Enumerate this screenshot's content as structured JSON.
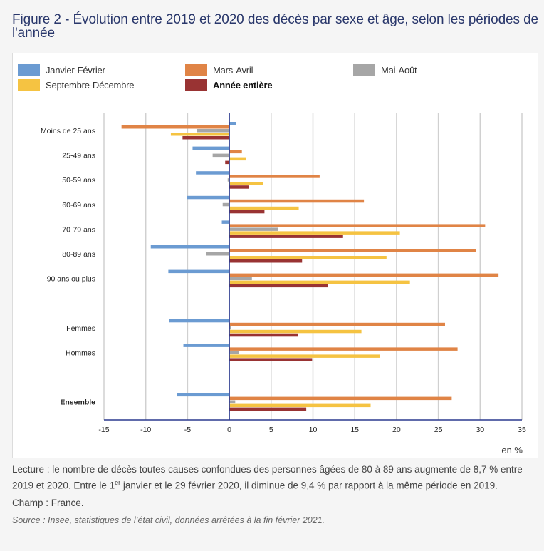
{
  "title": "Figure 2 - Évolution entre 2019 et 2020 des décès par sexe et âge, selon les périodes de l'année",
  "chart_data": {
    "type": "bar",
    "orientation": "horizontal",
    "title": "Figure 2 - Évolution entre 2019 et 2020 des décès par sexe et âge, selon les périodes de l'année",
    "xlabel": "en %",
    "ylabel": "",
    "xlim": [
      -15,
      35
    ],
    "xticks": [
      -15,
      -10,
      -5,
      0,
      5,
      10,
      15,
      20,
      25,
      30,
      35
    ],
    "grid": true,
    "legend_position": "top",
    "categories": [
      "Moins de 25 ans",
      "25-49 ans",
      "50-59 ans",
      "60-69 ans",
      "70-79 ans",
      "80-89 ans",
      "90 ans ou plus",
      "Femmes",
      "Hommes",
      "Ensemble"
    ],
    "category_slots": [
      0,
      1,
      2,
      3,
      4,
      5,
      6,
      8,
      9,
      11
    ],
    "bold_categories": [
      "Ensemble"
    ],
    "series": [
      {
        "name": "Janvier-Février",
        "color": "#6b9bd2",
        "values": [
          0.8,
          -4.4,
          -4.0,
          -5.1,
          -0.9,
          -9.4,
          -7.3,
          -7.2,
          -5.5,
          -6.3
        ]
      },
      {
        "name": "Mars-Avril",
        "color": "#e08446",
        "values": [
          -12.9,
          1.5,
          10.8,
          16.1,
          30.6,
          29.5,
          32.2,
          25.8,
          27.3,
          26.6
        ]
      },
      {
        "name": "Mai-Août",
        "color": "#a6a6a6",
        "values": [
          -3.9,
          -2.0,
          -0.2,
          -0.8,
          5.8,
          -2.8,
          2.7,
          0.2,
          1.1,
          0.7
        ]
      },
      {
        "name": "Septembre-Décembre",
        "color": "#f5c342",
        "values": [
          -7.0,
          2.0,
          4.0,
          8.3,
          20.4,
          18.8,
          21.6,
          15.8,
          18.0,
          16.9
        ]
      },
      {
        "name": "Année entière",
        "color": "#993333",
        "bold": true,
        "values": [
          -5.6,
          -0.5,
          2.3,
          4.2,
          13.6,
          8.7,
          11.8,
          8.2,
          9.9,
          9.2
        ]
      }
    ]
  },
  "footer": {
    "lecture_part1": "Lecture : le nombre de décès toutes causes confondues des personnes âgées de 80 à 89 ans augmente de 8,7 % entre 2019 et 2020. Entre le 1",
    "lecture_sup": "er",
    "lecture_part2": " janvier et le 29 février 2020, il diminue de 9,4 % par rapport à la même période en 2019.",
    "champ": "Champ : France.",
    "source": "Source : Insee, statistiques de l’état civil, données arrêtées à la fin février 2021."
  }
}
